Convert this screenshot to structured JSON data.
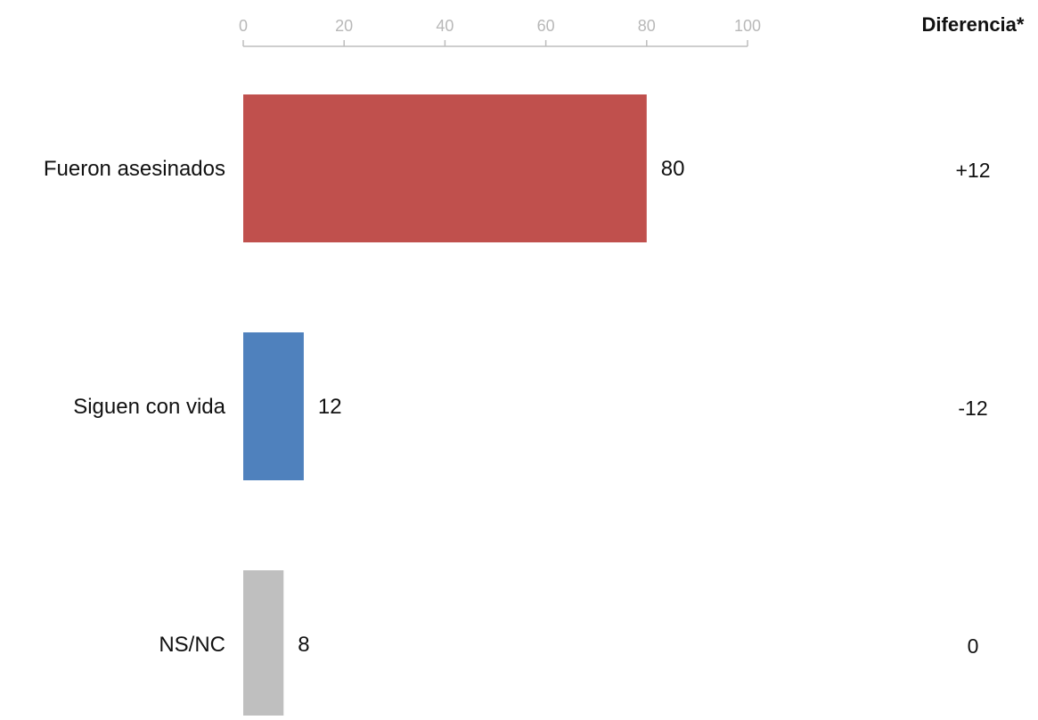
{
  "chart_data": {
    "type": "bar",
    "orientation": "horizontal",
    "categories": [
      "Fueron asesinados",
      "Siguen con vida",
      "NS/NC"
    ],
    "values": [
      80,
      12,
      8
    ],
    "value_labels": [
      "80",
      "12",
      "8"
    ],
    "bar_colors": [
      "#c0504d",
      "#4f81bd",
      "#bfbfbf"
    ],
    "xlim": [
      0,
      100
    ],
    "x_ticks": [
      0,
      20,
      40,
      60,
      80,
      100
    ],
    "x_tick_labels": [
      "0",
      "20",
      "40",
      "60",
      "80",
      "100"
    ],
    "axis_position": "top",
    "grid": false,
    "legend": "none",
    "title": "",
    "xlabel": "",
    "ylabel": "",
    "difference_column": {
      "header": "Diferencia*",
      "values": [
        "+12",
        "-12",
        "0"
      ]
    }
  }
}
